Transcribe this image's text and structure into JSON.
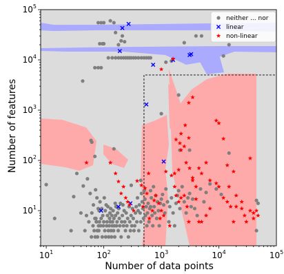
{
  "chart_data": {
    "type": "scatter",
    "title": "",
    "xlabel": "Number of data points",
    "ylabel": "Number of features",
    "xscale": "log",
    "yscale": "log",
    "xlim": [
      8,
      100000
    ],
    "ylim": [
      2,
      100000
    ],
    "x_ticks": [
      {
        "value": 10,
        "base": "10",
        "exp": "1"
      },
      {
        "value": 100,
        "base": "10",
        "exp": "2"
      },
      {
        "value": 1000,
        "base": "10",
        "exp": "3"
      },
      {
        "value": 10000,
        "base": "10",
        "exp": "4"
      },
      {
        "value": 100000,
        "base": "10",
        "exp": "5"
      }
    ],
    "y_ticks": [
      {
        "value": 10,
        "base": "10",
        "exp": "1"
      },
      {
        "value": 100,
        "base": "10",
        "exp": "2"
      },
      {
        "value": 1000,
        "base": "10",
        "exp": "3"
      },
      {
        "value": 10000,
        "base": "10",
        "exp": "4"
      },
      {
        "value": 100000,
        "base": "10",
        "exp": "5"
      }
    ],
    "background_color": "#dcdcdc",
    "legend_position": "top-right",
    "region_colors": {
      "linear": "#aaaaff",
      "non_linear": "#ffaaaa"
    },
    "dashed_box": {
      "x": [
        500,
        100000
      ],
      "y": [
        2,
        5000
      ]
    },
    "series": [
      {
        "name": "neither ... nor",
        "marker": "circle",
        "color": "#7f7f7f",
        "points": [
          [
            10,
            33
          ],
          [
            14,
            7
          ],
          [
            27,
            4
          ],
          [
            30,
            19
          ],
          [
            34,
            55
          ],
          [
            40,
            9
          ],
          [
            44,
            31
          ],
          [
            47,
            4
          ],
          [
            50,
            8
          ],
          [
            52,
            43
          ],
          [
            55,
            6
          ],
          [
            58,
            22
          ],
          [
            61,
            3
          ],
          [
            62,
            9
          ],
          [
            65,
            5
          ],
          [
            66,
            13
          ],
          [
            68,
            4
          ],
          [
            70,
            7
          ],
          [
            71,
            3
          ],
          [
            72,
            26
          ],
          [
            73,
            7
          ],
          [
            74,
            6
          ],
          [
            75,
            6
          ],
          [
            76,
            18
          ],
          [
            77,
            4
          ],
          [
            78,
            3
          ],
          [
            80,
            11
          ],
          [
            81,
            5
          ],
          [
            82,
            4
          ],
          [
            83,
            10
          ],
          [
            84,
            6
          ],
          [
            86,
            15
          ],
          [
            88,
            5
          ],
          [
            90,
            7
          ],
          [
            92,
            11
          ],
          [
            94,
            3
          ],
          [
            96,
            8
          ],
          [
            98,
            5
          ],
          [
            100,
            6
          ],
          [
            102,
            18
          ],
          [
            104,
            4
          ],
          [
            106,
            10
          ],
          [
            108,
            3
          ],
          [
            110,
            13
          ],
          [
            112,
            5
          ],
          [
            114,
            6
          ],
          [
            116,
            8
          ],
          [
            118,
            12
          ],
          [
            120,
            4
          ],
          [
            122,
            3
          ],
          [
            124,
            5
          ],
          [
            126,
            7
          ],
          [
            128,
            9
          ],
          [
            130,
            6
          ],
          [
            132,
            11
          ],
          [
            134,
            4
          ],
          [
            136,
            3
          ],
          [
            138,
            8
          ],
          [
            140,
            5
          ],
          [
            142,
            6
          ],
          [
            145,
            10
          ],
          [
            148,
            4
          ],
          [
            150,
            7
          ],
          [
            152,
            5
          ],
          [
            155,
            3
          ],
          [
            158,
            14
          ],
          [
            160,
            8
          ],
          [
            163,
            12
          ],
          [
            166,
            5
          ],
          [
            170,
            6
          ],
          [
            174,
            9
          ],
          [
            178,
            4
          ],
          [
            182,
            11
          ],
          [
            186,
            7
          ],
          [
            190,
            5
          ],
          [
            195,
            14
          ],
          [
            200,
            3
          ],
          [
            205,
            6
          ],
          [
            210,
            8
          ],
          [
            215,
            13
          ],
          [
            220,
            5
          ],
          [
            226,
            10
          ],
          [
            232,
            6
          ],
          [
            238,
            4
          ],
          [
            245,
            9
          ],
          [
            252,
            5
          ],
          [
            260,
            7
          ],
          [
            268,
            3
          ],
          [
            275,
            12
          ],
          [
            283,
            6
          ],
          [
            290,
            4
          ],
          [
            298,
            8
          ],
          [
            306,
            5
          ],
          [
            315,
            11
          ],
          [
            325,
            7
          ],
          [
            335,
            4
          ],
          [
            345,
            5
          ],
          [
            355,
            9
          ],
          [
            365,
            12
          ],
          [
            375,
            6
          ],
          [
            385,
            18
          ],
          [
            395,
            10
          ],
          [
            405,
            4
          ],
          [
            415,
            13
          ],
          [
            428,
            9
          ],
          [
            440,
            6
          ],
          [
            452,
            22
          ],
          [
            465,
            15
          ],
          [
            478,
            11
          ],
          [
            490,
            7
          ],
          [
            505,
            25
          ],
          [
            520,
            17
          ],
          [
            530,
            8
          ],
          [
            545,
            12
          ],
          [
            560,
            5
          ],
          [
            575,
            9
          ],
          [
            590,
            14
          ],
          [
            610,
            6
          ],
          [
            630,
            11
          ],
          [
            650,
            25
          ],
          [
            670,
            18
          ],
          [
            690,
            8
          ],
          [
            710,
            5
          ],
          [
            730,
            30
          ],
          [
            750,
            12
          ],
          [
            770,
            9
          ],
          [
            800,
            20
          ],
          [
            830,
            7
          ],
          [
            860,
            15
          ],
          [
            890,
            10
          ],
          [
            920,
            5
          ],
          [
            960,
            14
          ],
          [
            1000,
            17
          ],
          [
            1050,
            21
          ],
          [
            1100,
            13
          ],
          [
            1150,
            9
          ],
          [
            1200,
            27
          ],
          [
            1280,
            15
          ],
          [
            1350,
            6
          ],
          [
            1400,
            12
          ],
          [
            1500,
            18
          ],
          [
            1600,
            9
          ],
          [
            1700,
            5
          ],
          [
            1800,
            14
          ],
          [
            1900,
            20
          ],
          [
            2000,
            25
          ],
          [
            2100,
            11
          ],
          [
            2300,
            30
          ],
          [
            2500,
            15
          ],
          [
            2700,
            9
          ],
          [
            2900,
            18
          ],
          [
            3100,
            22
          ],
          [
            3300,
            12
          ],
          [
            3500,
            17
          ],
          [
            3800,
            11
          ],
          [
            4200,
            8
          ],
          [
            4800,
            27
          ],
          [
            5500,
            15
          ],
          [
            6000,
            23
          ],
          [
            7000,
            34
          ],
          [
            9000,
            27
          ],
          [
            11000,
            21
          ],
          [
            45000,
            16
          ],
          [
            48000,
            14
          ],
          [
            45000,
            4
          ],
          [
            43,
            3800
          ],
          [
            70,
            7000
          ],
          [
            80,
            7000
          ],
          [
            90,
            7000
          ],
          [
            85,
            21000
          ],
          [
            95,
            21000
          ],
          [
            100,
            21000
          ],
          [
            80,
            55000
          ],
          [
            90,
            55000
          ],
          [
            100,
            55000
          ],
          [
            130,
            60000
          ],
          [
            150,
            55000
          ],
          [
            160,
            35000
          ],
          [
            210,
            30000
          ],
          [
            200,
            24000
          ],
          [
            180,
            20000
          ],
          [
            230,
            23000
          ],
          [
            120,
            11000
          ],
          [
            140,
            11000
          ],
          [
            160,
            11000
          ],
          [
            180,
            11000
          ],
          [
            200,
            11000
          ],
          [
            220,
            11000
          ],
          [
            240,
            11000
          ],
          [
            260,
            11000
          ],
          [
            280,
            11000
          ],
          [
            300,
            11000
          ],
          [
            330,
            11000
          ],
          [
            360,
            11000
          ],
          [
            400,
            11000
          ],
          [
            450,
            11000
          ],
          [
            500,
            11000
          ],
          [
            550,
            11000
          ],
          [
            600,
            11000
          ],
          [
            650,
            11000
          ],
          [
            1500,
            9500
          ],
          [
            1200,
            9000
          ],
          [
            2500,
            22000
          ],
          [
            4000,
            30000
          ],
          [
            5000,
            30000
          ],
          [
            12000,
            12000
          ],
          [
            15000,
            20000
          ],
          [
            60,
            250
          ],
          [
            62,
            230
          ],
          [
            70,
            120
          ],
          [
            150,
            170
          ],
          [
            1000,
            850
          ],
          [
            2000,
            2000
          ],
          [
            15000,
            140
          ],
          [
            300,
            32
          ],
          [
            2100,
            160
          ],
          [
            3100,
            160
          ],
          [
            650,
            12
          ],
          [
            440,
            40
          ]
        ]
      },
      {
        "name": "linear",
        "marker": "x",
        "color": "#0000ff",
        "points": [
          [
            210,
            43000
          ],
          [
            270,
            52000
          ],
          [
            190,
            15000
          ],
          [
            720,
            8000
          ],
          [
            3100,
            12500
          ],
          [
            3300,
            13000
          ],
          [
            550,
            1300
          ],
          [
            1600,
            10000
          ],
          [
            1100,
            95
          ],
          [
            90,
            10
          ],
          [
            180,
            12
          ],
          [
            290,
            14
          ]
        ]
      },
      {
        "name": "non-linear",
        "marker": "star",
        "color": "#ff0000",
        "points": [
          [
            1600,
            10500
          ],
          [
            1000,
            6500
          ],
          [
            3500,
            1800
          ],
          [
            3000,
            1400
          ],
          [
            2600,
            500
          ],
          [
            2200,
            340
          ],
          [
            1800,
            260
          ],
          [
            2100,
            220
          ],
          [
            2500,
            190
          ],
          [
            3000,
            280
          ],
          [
            2000,
            65
          ],
          [
            1700,
            55
          ],
          [
            2200,
            160
          ],
          [
            2700,
            90
          ],
          [
            3100,
            70
          ],
          [
            3500,
            40
          ],
          [
            4000,
            30
          ],
          [
            4500,
            70
          ],
          [
            5000,
            55
          ],
          [
            6000,
            90
          ],
          [
            7000,
            40
          ],
          [
            9000,
            620
          ],
          [
            10000,
            550
          ],
          [
            12000,
            270
          ],
          [
            14000,
            80
          ],
          [
            15000,
            30
          ],
          [
            18000,
            60
          ],
          [
            20000,
            12
          ],
          [
            25000,
            11
          ],
          [
            28000,
            8
          ],
          [
            35000,
            110
          ],
          [
            40000,
            9
          ],
          [
            45000,
            10
          ],
          [
            50,
            90
          ],
          [
            130,
            90
          ],
          [
            160,
            55
          ],
          [
            180,
            38
          ],
          [
            200,
            22
          ],
          [
            220,
            30
          ],
          [
            240,
            18
          ],
          [
            260,
            15
          ],
          [
            280,
            13
          ],
          [
            330,
            10
          ],
          [
            380,
            39
          ],
          [
            450,
            32
          ],
          [
            480,
            12
          ],
          [
            520,
            28
          ],
          [
            560,
            22
          ],
          [
            600,
            55
          ],
          [
            620,
            7
          ],
          [
            700,
            10
          ],
          [
            750,
            16
          ],
          [
            800,
            20
          ],
          [
            900,
            14
          ],
          [
            950,
            7
          ],
          [
            1000,
            10
          ],
          [
            1100,
            8
          ],
          [
            1200,
            60
          ],
          [
            1400,
            5
          ],
          [
            1500,
            50
          ],
          [
            1700,
            30
          ],
          [
            1800,
            20
          ],
          [
            2000,
            15
          ],
          [
            2200,
            18
          ],
          [
            2500,
            20
          ],
          [
            2800,
            12
          ],
          [
            3000,
            6
          ],
          [
            3500,
            45
          ],
          [
            4000,
            17
          ],
          [
            4500,
            6
          ],
          [
            5000,
            6
          ],
          [
            6000,
            8
          ],
          [
            7000,
            11
          ],
          [
            9000,
            35
          ],
          [
            10000,
            30
          ],
          [
            12000,
            18
          ],
          [
            14000,
            15
          ],
          [
            16000,
            12
          ],
          [
            18000,
            6
          ],
          [
            20000,
            20
          ],
          [
            25000,
            15
          ],
          [
            30000,
            6
          ],
          [
            35000,
            10
          ],
          [
            40000,
            7
          ],
          [
            48000,
            8
          ]
        ]
      }
    ]
  }
}
